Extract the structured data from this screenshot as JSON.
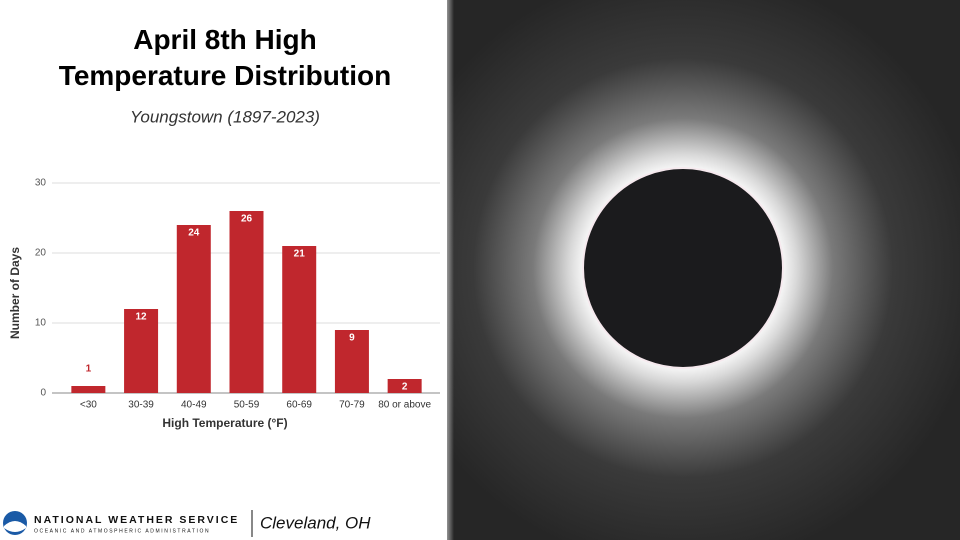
{
  "chart_data": {
    "type": "bar",
    "title": "April 8th High Temperature Distribution",
    "subtitle": "Youngstown (1897-2023)",
    "categories": [
      "<30",
      "30-39",
      "40-49",
      "50-59",
      "60-69",
      "70-79",
      "80 or above"
    ],
    "values": [
      1,
      12,
      24,
      26,
      21,
      9,
      2
    ],
    "color": "#c0272d",
    "x_label": "High Temperature (°F)",
    "y_label": "Number of Days",
    "ylim": [
      0,
      30
    ],
    "yticks": [
      0,
      10,
      20,
      30
    ],
    "grid": true
  },
  "footer": {
    "agency": "NATIONAL WEATHER SERVICE",
    "parent": "OCEANIC AND ATMOSPHERIC ADMINISTRATION",
    "office": "Cleveland, OH"
  }
}
